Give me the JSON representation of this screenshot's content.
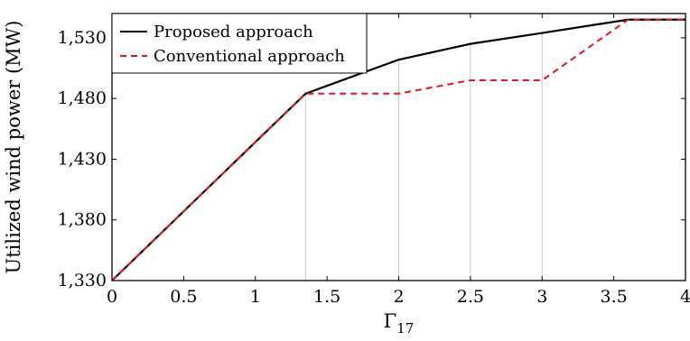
{
  "chart_data": {
    "type": "line",
    "title": "",
    "xlabel": "Γ",
    "xlabel_subscript": "17",
    "ylabel": "Utilized wind power (MW)",
    "xlim": [
      0,
      4
    ],
    "ylim": [
      1330,
      1550
    ],
    "xticks": [
      0,
      0.5,
      1,
      1.5,
      2,
      2.5,
      3,
      3.5,
      4
    ],
    "xtick_labels": [
      "0",
      "0.5",
      "1",
      "1.5",
      "2",
      "2.5",
      "3",
      "3.5",
      "4"
    ],
    "yticks": [
      1330,
      1380,
      1430,
      1480,
      1530
    ],
    "ytick_labels": [
      "1,330",
      "1,380",
      "1,430",
      "1,480",
      "1,530"
    ],
    "vertical_guides": [
      1.35,
      2,
      2.5,
      3
    ],
    "legend_position": "top-left",
    "series": [
      {
        "name": "Proposed approach",
        "color": "#000000",
        "dash": "solid",
        "points": [
          [
            0,
            1330
          ],
          [
            1.35,
            1484
          ],
          [
            2,
            1512
          ],
          [
            2.5,
            1525
          ],
          [
            3,
            1534
          ],
          [
            3.6,
            1545
          ],
          [
            4,
            1545
          ]
        ]
      },
      {
        "name": "Conventional approach",
        "color": "#e8141c",
        "dash": "dashed",
        "points": [
          [
            0,
            1330
          ],
          [
            1.35,
            1484
          ],
          [
            2,
            1484
          ],
          [
            2.5,
            1495
          ],
          [
            3,
            1495
          ],
          [
            3.6,
            1545
          ],
          [
            4,
            1545
          ]
        ]
      }
    ]
  }
}
